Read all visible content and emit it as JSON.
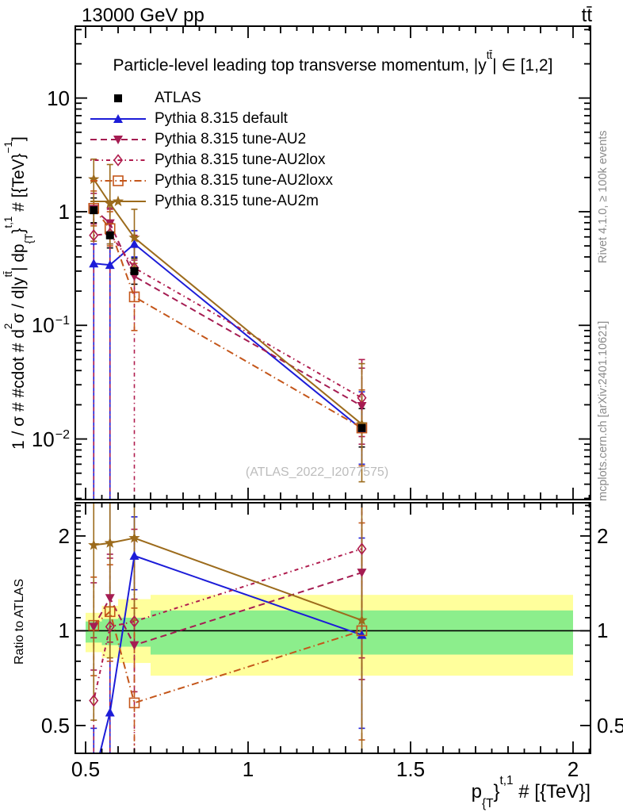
{
  "header": {
    "left": "13000 GeV pp",
    "right": "tt̄"
  },
  "credits": {
    "right_top": "Rivet 4.1.0, ≥ 100k events",
    "right_bottom": "mcplots.cern.ch [arXiv:2401.10621]"
  },
  "watermark": "(ATLAS_2022_I2077575)",
  "chart_data": {
    "type": "line",
    "title_parts": {
      "pre": "Particle-level leading top transverse momentum, |y",
      "sup": "tt̄",
      "post": "| ∈ [1,2]"
    },
    "x": [
      0.525,
      0.575,
      0.65,
      1.35
    ],
    "bin_edges": [
      0.5,
      0.55,
      0.6,
      0.7,
      2.0
    ],
    "x_axis": {
      "min": 0.4683,
      "max": 2.0537,
      "major_ticks": [
        0.5,
        1.0,
        1.5,
        2.0
      ],
      "major_labels": [
        "0.5",
        "1",
        "1.5",
        "2"
      ],
      "minor_step": 0.05,
      "label_parts": [
        {
          "t": "p"
        },
        {
          "t": "{T",
          "sub": true
        },
        {
          "t": "}"
        },
        {
          "t": "t,1",
          "sup": true
        },
        {
          "t": " # [{TeV}]"
        }
      ]
    },
    "y_axis_main": {
      "scale": "log",
      "min": 0.00293,
      "max": 42.9,
      "tick_labels": [
        {
          "v": 10,
          "base": "10",
          "exp": ""
        },
        {
          "v": 1,
          "base": "1",
          "exp": ""
        },
        {
          "v": 0.1,
          "base": "10",
          "exp": "−1"
        },
        {
          "v": 0.01,
          "base": "10",
          "exp": "−2"
        }
      ],
      "label_parts": [
        {
          "t": "1 / σ # #cdot # d"
        },
        {
          "t": "2",
          "sup": true
        },
        {
          "t": "σ / d|y"
        },
        {
          "t": "tt̄",
          "sup": true
        },
        {
          "t": "| dp"
        },
        {
          "t": "{T",
          "sub": true
        },
        {
          "t": "}"
        },
        {
          "t": "t,1",
          "sup": true
        },
        {
          "t": " # [{TeV}"
        },
        {
          "t": "−1",
          "sup": true
        },
        {
          "t": "]"
        }
      ]
    },
    "y_axis_ratio": {
      "scale": "log",
      "min": 0.408,
      "max": 2.55,
      "label": "Ratio to ATLAS",
      "tick_labels": [
        {
          "v": 2,
          "base": "2",
          "exp": ""
        },
        {
          "v": 1,
          "base": "1",
          "exp": ""
        },
        {
          "v": 0.5,
          "base": "0.5",
          "exp": ""
        }
      ]
    },
    "reference_line": 1,
    "ratio_bands": {
      "yellow_color": "#ffff9c",
      "green_color": "#8cee8c",
      "yellow": [
        {
          "x0": 0.5,
          "x1": 0.55,
          "lo": 0.855,
          "hi": 1.14
        },
        {
          "x0": 0.55,
          "x1": 0.6,
          "lo": 0.82,
          "hi": 1.2
        },
        {
          "x0": 0.6,
          "x1": 0.7,
          "lo": 0.79,
          "hi": 1.26
        },
        {
          "x0": 0.7,
          "x1": 2.0,
          "lo": 0.72,
          "hi": 1.3
        }
      ],
      "green": [
        {
          "x0": 0.5,
          "x1": 0.55,
          "lo": 0.917,
          "hi": 1.07
        },
        {
          "x0": 0.55,
          "x1": 0.6,
          "lo": 0.9,
          "hi": 1.09
        },
        {
          "x0": 0.6,
          "x1": 0.7,
          "lo": 0.89,
          "hi": 1.1
        },
        {
          "x0": 0.7,
          "x1": 2.0,
          "lo": 0.84,
          "hi": 1.16
        }
      ]
    },
    "series": [
      {
        "id": "atlas",
        "label": "ATLAS",
        "color": "#000000",
        "marker": "square_filled",
        "line": "none",
        "dash": "none",
        "values": [
          1.03,
          0.62,
          0.3,
          0.0125
        ],
        "errors": [
          [
            0.8,
            1.32
          ],
          [
            0.48,
            0.8
          ],
          [
            0.23,
            0.39
          ],
          [
            0.0085,
            0.0185
          ]
        ],
        "ratio": null,
        "ratio_errors": null
      },
      {
        "id": "default",
        "label": "Pythia 8.315 default",
        "color": "#1c1cd8",
        "marker": "triangle_up",
        "line": "solid",
        "dash": "none",
        "values": [
          0.35,
          0.34,
          0.52,
          0.0122
        ],
        "errors": [
          [
            0.0025,
            0.52
          ],
          [
            0.0025,
            0.52
          ],
          [
            0.4,
            0.68
          ],
          [
            0.006,
            0.026
          ]
        ],
        "ratio": [
          0.34,
          0.55,
          1.73,
          0.97
        ],
        "ratio_errors": [
          [
            0.002,
            0.49
          ],
          [
            0.005,
            2.6
          ],
          [
            1.35,
            2.3
          ],
          [
            0.49,
            1.97
          ]
        ]
      },
      {
        "id": "au2",
        "label": "Pythia 8.315 tune-AU2",
        "color": "#a51c52",
        "marker": "triangle_down",
        "line": "dashed",
        "dash": "dashed",
        "values": [
          1.06,
          0.79,
          0.27,
          0.0195
        ],
        "errors": [
          [
            0.78,
            1.45
          ],
          [
            0.58,
            1.08
          ],
          [
            0.195,
            0.375
          ],
          [
            0.009,
            0.042
          ]
        ],
        "ratio": [
          1.03,
          1.27,
          0.9,
          1.53
        ],
        "ratio_errors": [
          [
            0.75,
            1.42
          ],
          [
            0.92,
            1.75
          ],
          [
            0.64,
            1.26
          ],
          [
            0.7,
            2.6
          ]
        ]
      },
      {
        "id": "au2lox",
        "label": "Pythia 8.315 tune-AU2lox",
        "color": "#b01c4e",
        "marker": "diamond_open",
        "line": "dashdot",
        "dash": "dashdot",
        "values": [
          0.62,
          0.64,
          0.32,
          0.023
        ],
        "errors": [
          [
            0.0025,
            0.98
          ],
          [
            0.0025,
            1.05
          ],
          [
            0.0025,
            0.62
          ],
          [
            0.0105,
            0.05
          ]
        ],
        "ratio": [
          0.6,
          1.03,
          1.07,
          1.82
        ],
        "ratio_errors": [
          [
            0.002,
            0.95
          ],
          [
            0.005,
            1.7
          ],
          [
            0.006,
            2.1
          ],
          [
            0.82,
            2.6
          ]
        ]
      },
      {
        "id": "au2loxx",
        "label": "Pythia 8.315 tune-AU2loxx",
        "color": "#c4561a",
        "marker": "square_open",
        "line": "longdashdot",
        "dash": "longdashdot",
        "values": [
          1.07,
          0.71,
          0.178,
          0.0125
        ],
        "errors": [
          [
            0.75,
            1.52
          ],
          [
            0.5,
            1.0
          ],
          [
            0.09,
            0.35
          ],
          [
            0.0058,
            0.027
          ]
        ],
        "ratio": [
          1.04,
          1.15,
          0.59,
          1.0
        ],
        "ratio_errors": [
          [
            0.72,
            1.48
          ],
          [
            0.8,
            1.62
          ],
          [
            0.29,
            1.18
          ],
          [
            0.45,
            2.2
          ]
        ]
      },
      {
        "id": "au2m",
        "label": "Pythia 8.315 tune-AU2m",
        "color": "#9c6b1c",
        "marker": "star_filled",
        "line": "solid",
        "dash": "none",
        "values": [
          1.93,
          1.18,
          0.59,
          0.0135
        ],
        "errors": [
          [
            0.55,
            2.9
          ],
          [
            0.52,
            2.6
          ],
          [
            0.33,
            1.05
          ],
          [
            0.0042,
            0.046
          ]
        ],
        "ratio": [
          1.87,
          1.9,
          1.97,
          1.08
        ],
        "ratio_errors": [
          [
            0.52,
            2.6
          ],
          [
            0.82,
            2.6
          ],
          [
            1.08,
            2.6
          ],
          [
            0.33,
            2.6
          ]
        ]
      }
    ]
  }
}
